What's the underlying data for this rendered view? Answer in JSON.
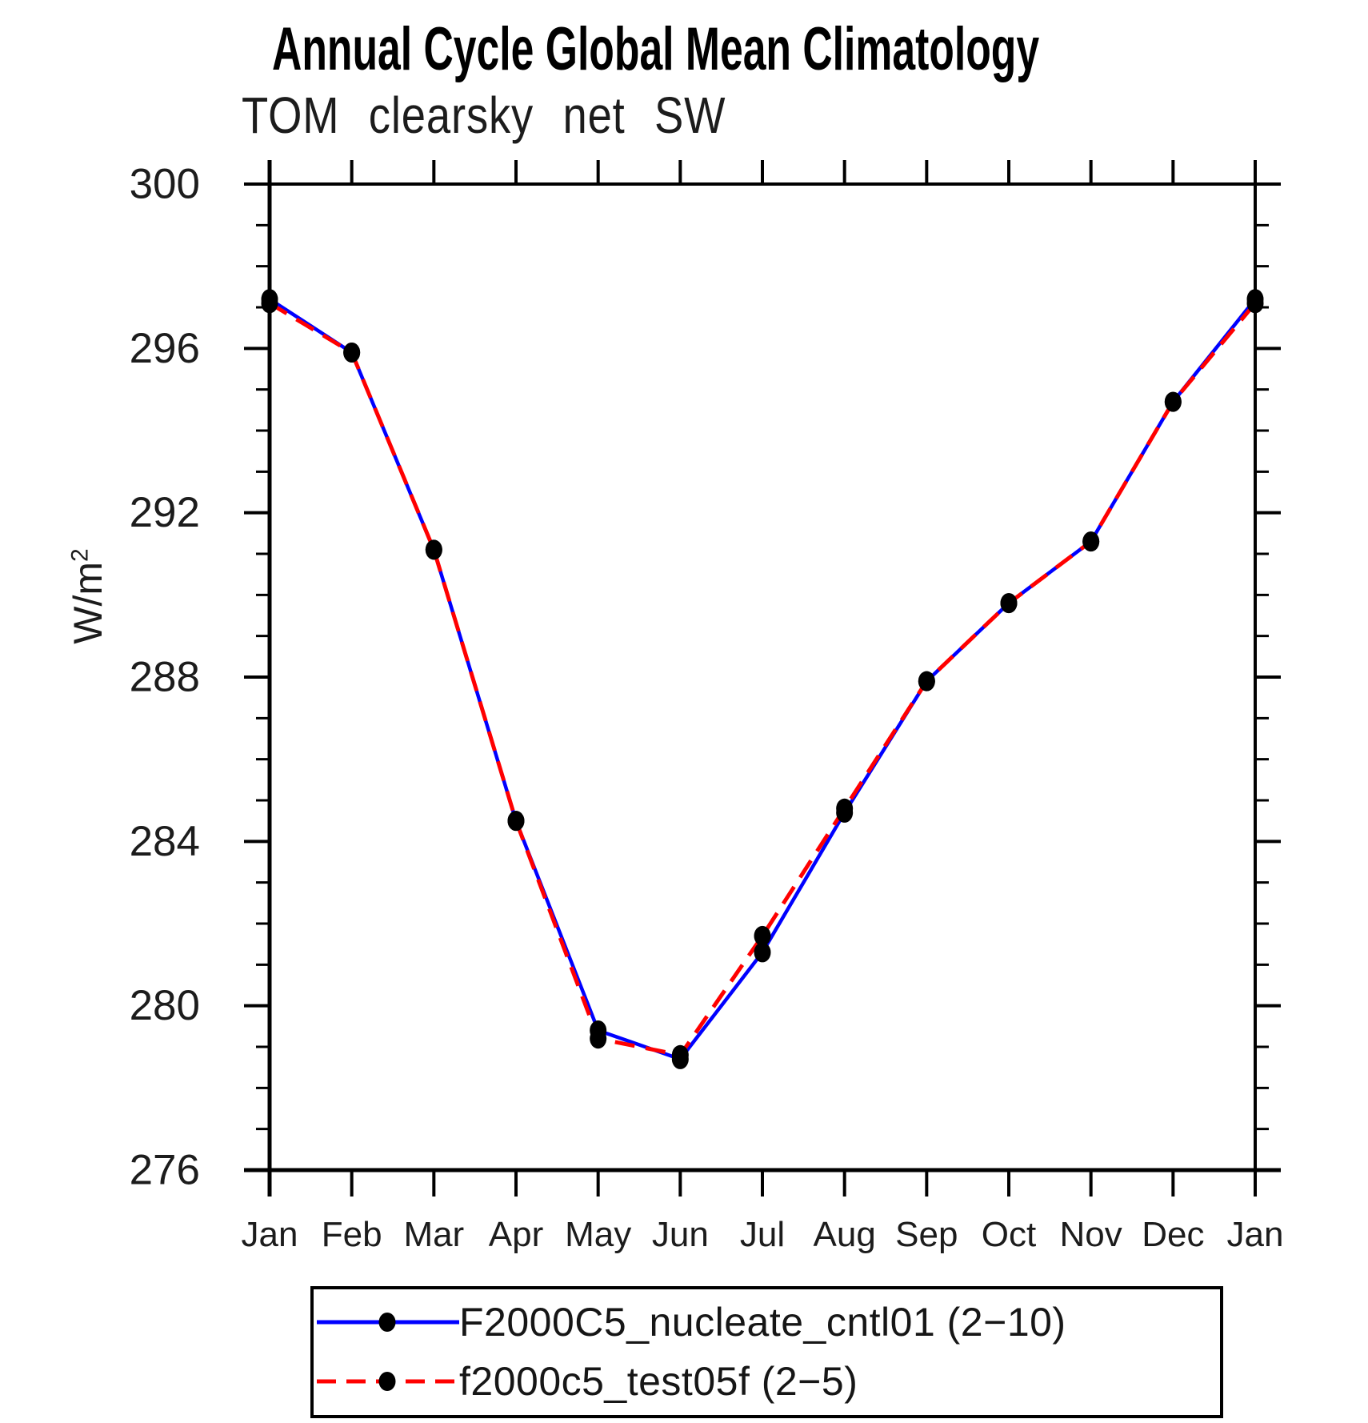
{
  "header": {
    "title": "Annual Cycle Global Mean Climatology",
    "subtitle": "TOM clearsky net SW"
  },
  "chart_data": {
    "type": "line",
    "title": "Annual Cycle Global Mean Climatology",
    "subtitle": "TOM clearsky net SW",
    "xlabel": "",
    "ylabel": "W/m²",
    "ylabel_parts": {
      "base": "W/m",
      "exp": "2"
    },
    "categories": [
      "Jan",
      "Feb",
      "Mar",
      "Apr",
      "May",
      "Jun",
      "Jul",
      "Aug",
      "Sep",
      "Oct",
      "Nov",
      "Dec",
      "Jan"
    ],
    "y_ticks": [
      300,
      296,
      292,
      288,
      284,
      280,
      276
    ],
    "ylim": [
      276,
      300
    ],
    "y_minor_step": 1,
    "grid": false,
    "legend_position": "bottom",
    "axis_color": "#000000",
    "marker_color": "#000000",
    "series": [
      {
        "name": "F2000C5_nucleate_cntl01 (2−10)",
        "color": "#0000ff",
        "style": "solid",
        "marker": "circle",
        "values": [
          297.2,
          295.9,
          291.1,
          284.5,
          279.4,
          278.7,
          281.3,
          284.7,
          287.9,
          289.8,
          291.3,
          294.7,
          297.2
        ]
      },
      {
        "name": "f2000c5_test05f (2−5)",
        "color": "#ff0000",
        "style": "dashed",
        "marker": "circle",
        "values": [
          297.1,
          295.9,
          291.1,
          284.5,
          279.2,
          278.8,
          281.7,
          284.8,
          287.9,
          289.8,
          291.3,
          294.7,
          297.1
        ]
      }
    ]
  }
}
